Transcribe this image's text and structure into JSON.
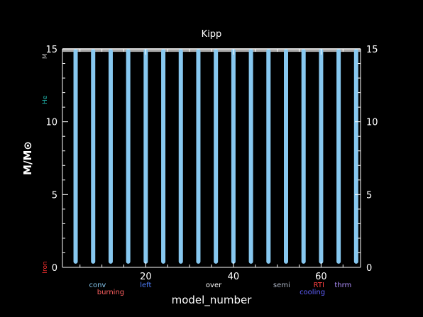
{
  "chart_data": {
    "type": "bar",
    "title": "Kipp",
    "xlabel": "model_number",
    "ylabel": "M/M⊙",
    "xlim": [
      1,
      69
    ],
    "ylim": [
      0,
      15
    ],
    "x_ticks": [
      20,
      40,
      60
    ],
    "y_ticks_left": [
      0,
      5,
      10,
      15
    ],
    "y_ticks_right": [
      0,
      5,
      10,
      15
    ],
    "series": [
      {
        "name": "conv",
        "color": "#87c8f0",
        "bottom": 0.25,
        "top": 15,
        "x": [
          4,
          8,
          12,
          16,
          20,
          24,
          28,
          32,
          36,
          40,
          44,
          48,
          52,
          56,
          60,
          64,
          68
        ]
      }
    ],
    "top_band": {
      "bottom": 14.85,
      "top": 15,
      "color": "#a9a9a9"
    },
    "left_labels": [
      {
        "text": "M",
        "y": 14.5,
        "color": "#aaaaaa"
      },
      {
        "text": "He",
        "y": 11.5,
        "color": "#20b2aa"
      },
      {
        "text": "Iron",
        "y": 0,
        "color": "#ff3030"
      }
    ],
    "legend": [
      {
        "text": "conv",
        "color": "#87c8f0",
        "row": 1,
        "x": 9
      },
      {
        "text": "burning",
        "color": "#ff6060",
        "row": 2,
        "x": 12
      },
      {
        "text": "left",
        "color": "#4f7fff",
        "row": 1,
        "x": 20
      },
      {
        "text": "over",
        "color": "#ffffff",
        "row": 1,
        "x": 35.5
      },
      {
        "text": "semi",
        "color": "#b0b8c8",
        "row": 1,
        "x": 51
      },
      {
        "text": "RTI",
        "color": "#ff4040",
        "row": 1,
        "x": 59.5
      },
      {
        "text": "cooling",
        "color": "#6060ff",
        "row": 2,
        "x": 58
      },
      {
        "text": "thrm",
        "color": "#b090ff",
        "row": 1,
        "x": 65
      }
    ]
  }
}
